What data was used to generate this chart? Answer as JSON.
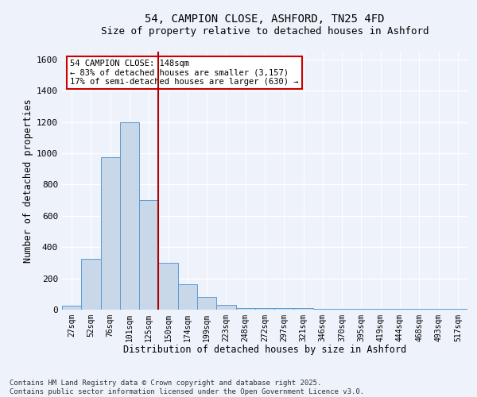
{
  "title_line1": "54, CAMPION CLOSE, ASHFORD, TN25 4FD",
  "title_line2": "Size of property relative to detached houses in Ashford",
  "xlabel": "Distribution of detached houses by size in Ashford",
  "ylabel": "Number of detached properties",
  "bin_labels": [
    "27sqm",
    "52sqm",
    "76sqm",
    "101sqm",
    "125sqm",
    "150sqm",
    "174sqm",
    "199sqm",
    "223sqm",
    "248sqm",
    "272sqm",
    "297sqm",
    "321sqm",
    "346sqm",
    "370sqm",
    "395sqm",
    "419sqm",
    "444sqm",
    "468sqm",
    "493sqm",
    "517sqm"
  ],
  "bar_heights": [
    25,
    325,
    975,
    1200,
    700,
    300,
    160,
    80,
    30,
    10,
    10,
    10,
    10,
    5,
    5,
    5,
    5,
    5,
    5,
    5,
    5
  ],
  "bar_color": "#c8d8e8",
  "bar_edge_color": "#5b9bd5",
  "vline_x": 5.0,
  "vline_color": "#aa0000",
  "annotation_text": "54 CAMPION CLOSE: 148sqm\n← 83% of detached houses are smaller (3,157)\n17% of semi-detached houses are larger (630) →",
  "annotation_box_color": "#ffffff",
  "annotation_box_edge_color": "#cc0000",
  "ylim": [
    0,
    1650
  ],
  "yticks": [
    0,
    200,
    400,
    600,
    800,
    1000,
    1200,
    1400,
    1600
  ],
  "footer_line1": "Contains HM Land Registry data © Crown copyright and database right 2025.",
  "footer_line2": "Contains public sector information licensed under the Open Government Licence v3.0.",
  "bg_color": "#eef2fa",
  "grid_color": "#ffffff"
}
